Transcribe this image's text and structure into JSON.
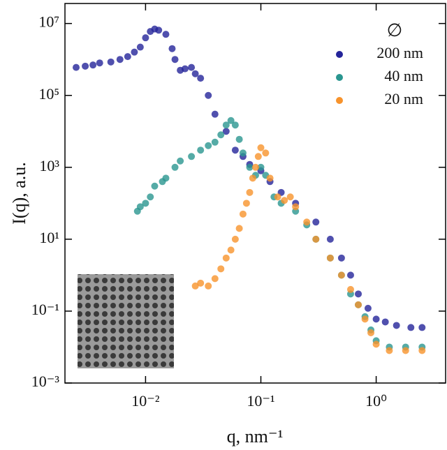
{
  "chart_data": {
    "type": "scatter",
    "x_label": "q, nm⁻¹",
    "y_label": "I(q), a.u.",
    "legend_title": "∅",
    "legend_position": "upper right",
    "xscale": "log",
    "yscale": "log",
    "xlim": [
      0.002,
      4
    ],
    "ylim": [
      0.001,
      36000000
    ],
    "xticks": [
      {
        "value": 0.01,
        "label": "10⁻²"
      },
      {
        "value": 0.1,
        "label": "10⁻¹"
      },
      {
        "value": 1,
        "label": "10⁰"
      }
    ],
    "yticks": [
      {
        "value": 0.001,
        "label": "10⁻³"
      },
      {
        "value": 0.1,
        "label": "10⁻¹"
      },
      {
        "value": 10,
        "label": "10¹"
      },
      {
        "value": 1000,
        "label": "10³"
      },
      {
        "value": 100000,
        "label": "10⁵"
      },
      {
        "value": 10000000,
        "label": "10⁷"
      }
    ],
    "series": [
      {
        "name": "200 nm",
        "color": "#24249a",
        "x": [
          0.0025,
          0.003,
          0.0035,
          0.004,
          0.005,
          0.006,
          0.007,
          0.008,
          0.009,
          0.01,
          0.011,
          0.012,
          0.013,
          0.015,
          0.017,
          0.018,
          0.02,
          0.022,
          0.025,
          0.027,
          0.03,
          0.035,
          0.04,
          0.05,
          0.06,
          0.07,
          0.08,
          0.1,
          0.12,
          0.15,
          0.2,
          0.3,
          0.4,
          0.5,
          0.6,
          0.7,
          0.85,
          1.0,
          1.2,
          1.5,
          2.0,
          2.5
        ],
        "values": [
          600000,
          650000,
          700000,
          800000,
          850000,
          1000000,
          1200000,
          1600000,
          2200000,
          4000000,
          6000000,
          7000000,
          6500000,
          5000000,
          2000000,
          1000000,
          500000,
          550000,
          600000,
          400000,
          300000,
          100000,
          30000,
          10000,
          3000,
          2000,
          1200,
          800,
          400,
          200,
          100,
          30,
          10,
          3,
          1,
          0.3,
          0.12,
          0.06,
          0.05,
          0.04,
          0.035,
          0.035
        ]
      },
      {
        "name": "40 nm",
        "color": "#2a9690",
        "x": [
          0.0085,
          0.009,
          0.01,
          0.011,
          0.012,
          0.014,
          0.015,
          0.018,
          0.02,
          0.025,
          0.03,
          0.035,
          0.04,
          0.045,
          0.05,
          0.055,
          0.06,
          0.065,
          0.07,
          0.08,
          0.09,
          0.1,
          0.11,
          0.13,
          0.15,
          0.2,
          0.25,
          0.3,
          0.4,
          0.5,
          0.6,
          0.7,
          0.8,
          0.9,
          1.0,
          1.3,
          1.8,
          2.5
        ],
        "values": [
          60,
          80,
          100,
          150,
          300,
          400,
          500,
          1000,
          1500,
          2000,
          3000,
          4000,
          5000,
          8000,
          15000,
          20000,
          15000,
          6000,
          2500,
          1000,
          600,
          1000,
          600,
          150,
          100,
          60,
          25,
          10,
          3,
          1,
          0.3,
          0.15,
          0.07,
          0.03,
          0.015,
          0.01,
          0.01,
          0.01
        ]
      },
      {
        "name": "20 nm",
        "color": "#f7932c",
        "x": [
          0.027,
          0.03,
          0.035,
          0.04,
          0.045,
          0.05,
          0.055,
          0.06,
          0.065,
          0.07,
          0.075,
          0.08,
          0.085,
          0.09,
          0.095,
          0.1,
          0.11,
          0.12,
          0.14,
          0.16,
          0.18,
          0.2,
          0.25,
          0.3,
          0.4,
          0.5,
          0.6,
          0.7,
          0.8,
          0.9,
          1.0,
          1.3,
          1.8,
          2.5
        ],
        "values": [
          0.5,
          0.6,
          0.5,
          0.8,
          1.5,
          3,
          5,
          10,
          20,
          50,
          100,
          200,
          500,
          1000,
          2000,
          3500,
          2500,
          500,
          150,
          120,
          150,
          80,
          30,
          10,
          3,
          1,
          0.4,
          0.15,
          0.06,
          0.025,
          0.012,
          0.008,
          0.008,
          0.008
        ]
      }
    ]
  }
}
